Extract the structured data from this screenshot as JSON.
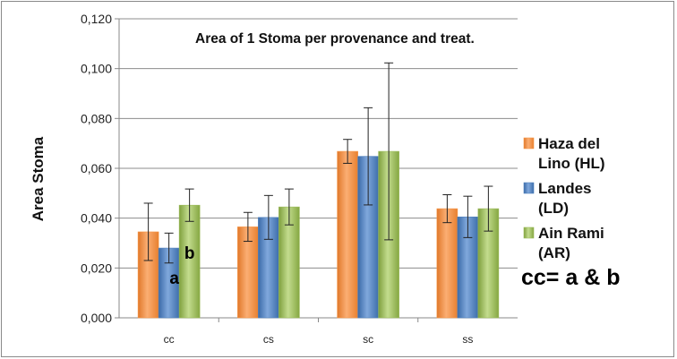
{
  "chart_data": {
    "type": "bar",
    "title": "Area of  1 Stoma per provenance and treat.",
    "ylabel": "Area Stoma",
    "xlabel": "",
    "ylim": [
      0,
      0.12
    ],
    "yticks": [
      "0,000",
      "0,020",
      "0,040",
      "0,060",
      "0,080",
      "0,100",
      "0,120"
    ],
    "ytick_values": [
      0,
      0.02,
      0.04,
      0.06,
      0.08,
      0.1,
      0.12
    ],
    "categories": [
      "cc",
      "cs",
      "sc",
      "ss"
    ],
    "grid": true,
    "legend_position": "right",
    "series": [
      {
        "name": "Haza del Lino (HL)",
        "legend_lines": [
          "Haza del",
          "Lino (HL)"
        ],
        "color": "#f79646",
        "values": [
          0.0345,
          0.0365,
          0.0668,
          0.0438
        ],
        "errors": [
          0.0115,
          0.0058,
          0.0048,
          0.0056
        ]
      },
      {
        "name": "Landes (LD)",
        "legend_lines": [
          "Landes",
          "(LD)"
        ],
        "color": "#4f81bd",
        "values": [
          0.028,
          0.0403,
          0.0648,
          0.0405
        ],
        "errors": [
          0.006,
          0.0088,
          0.0195,
          0.0083
        ]
      },
      {
        "name": "Ain Rami (AR)",
        "legend_lines": [
          "Ain Rami",
          "(AR)"
        ],
        "color": "#9bbb59",
        "values": [
          0.0452,
          0.0445,
          0.0668,
          0.0438
        ],
        "errors": [
          0.0065,
          0.0072,
          0.0355,
          0.009
        ]
      }
    ],
    "annotations": [
      {
        "text": "a",
        "category": "cc",
        "series": 1
      },
      {
        "text": "b",
        "category": "cc",
        "series": 2
      }
    ],
    "note": "cc= a & b"
  }
}
